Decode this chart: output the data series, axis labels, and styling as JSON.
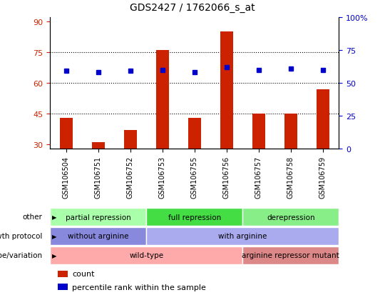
{
  "title": "GDS2427 / 1762066_s_at",
  "samples": [
    "GSM106504",
    "GSM106751",
    "GSM106752",
    "GSM106753",
    "GSM106755",
    "GSM106756",
    "GSM106757",
    "GSM106758",
    "GSM106759"
  ],
  "bar_values": [
    43,
    31,
    37,
    76,
    43,
    85,
    45,
    45,
    57
  ],
  "dot_values": [
    59,
    58,
    59,
    60,
    58,
    62,
    60,
    61,
    60
  ],
  "ylim_left": [
    28,
    92
  ],
  "ylim_right": [
    0,
    100
  ],
  "yticks_left": [
    30,
    45,
    60,
    75,
    90
  ],
  "yticks_right": [
    0,
    25,
    50,
    75,
    100
  ],
  "hlines": [
    45,
    60,
    75
  ],
  "bar_color": "#cc2200",
  "dot_color": "#0000cc",
  "bar_width": 0.4,
  "annotation_rows": [
    {
      "label": "other",
      "segments": [
        {
          "text": "partial repression",
          "start": 0,
          "end": 3,
          "color": "#aaffaa"
        },
        {
          "text": "full repression",
          "start": 3,
          "end": 6,
          "color": "#44dd44"
        },
        {
          "text": "derepression",
          "start": 6,
          "end": 9,
          "color": "#88ee88"
        }
      ]
    },
    {
      "label": "growth protocol",
      "segments": [
        {
          "text": "without arginine",
          "start": 0,
          "end": 3,
          "color": "#8888dd"
        },
        {
          "text": "with arginine",
          "start": 3,
          "end": 9,
          "color": "#aaaaee"
        }
      ]
    },
    {
      "label": "genotype/variation",
      "segments": [
        {
          "text": "wild-type",
          "start": 0,
          "end": 6,
          "color": "#ffaaaa"
        },
        {
          "text": "arginine repressor mutant",
          "start": 6,
          "end": 9,
          "color": "#dd8888"
        }
      ]
    }
  ],
  "legend_items": [
    {
      "color": "#cc2200",
      "label": "count"
    },
    {
      "color": "#0000cc",
      "label": "percentile rank within the sample"
    }
  ]
}
